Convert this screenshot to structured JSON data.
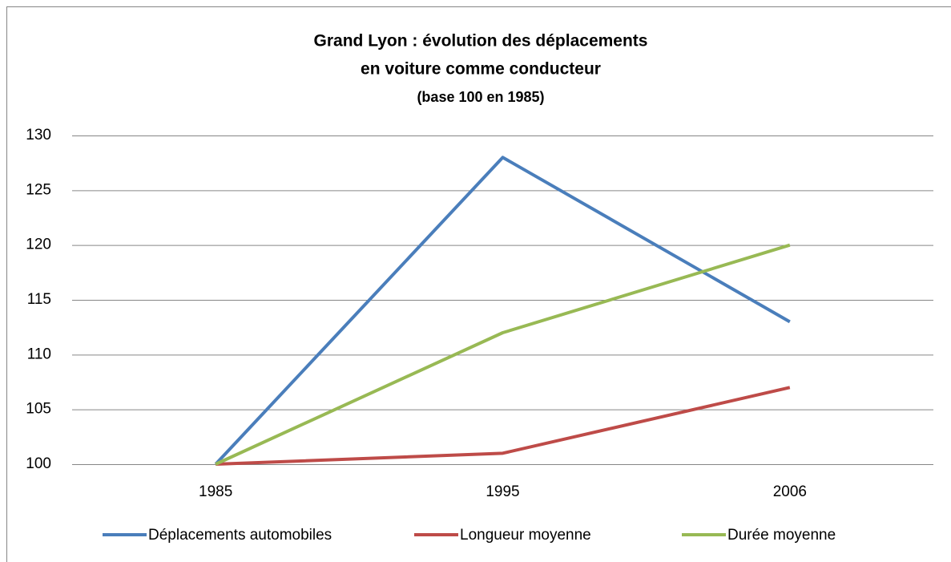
{
  "chart_data": {
    "type": "line",
    "title": [
      "Grand Lyon : évolution des déplacements",
      "en voiture comme conducteur"
    ],
    "subtitle": "(base 100 en 1985)",
    "categories": [
      "1985",
      "1995",
      "2006"
    ],
    "series": [
      {
        "name": "Déplacements automobiles",
        "color": "#4a7ebb",
        "values": [
          100,
          128,
          113
        ]
      },
      {
        "name": "Longueur moyenne",
        "color": "#be4b48",
        "values": [
          100,
          101,
          107
        ]
      },
      {
        "name": "Durée moyenne",
        "color": "#98b954",
        "values": [
          100,
          112,
          120
        ]
      }
    ],
    "ylim": [
      100,
      130
    ],
    "yticks": [
      100,
      105,
      110,
      115,
      120,
      125,
      130
    ],
    "grid": true,
    "legend": "bottom"
  }
}
